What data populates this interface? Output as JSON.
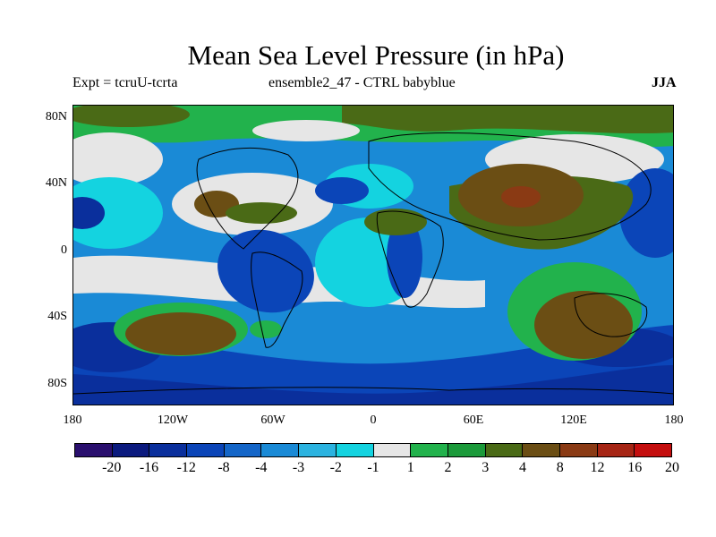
{
  "title": "Mean Sea Level Pressure (in hPa)",
  "subtitle_left": "Expt = tcruU-tcrta",
  "subtitle_center": "ensemble2_47 - CTRL babyblue",
  "subtitle_right": "JJA",
  "lat_labels": [
    "80N",
    "40N",
    "0",
    "40S",
    "80S"
  ],
  "lon_labels": [
    "180",
    "120W",
    "60W",
    "0",
    "60E",
    "120E",
    "180"
  ],
  "colorbar": {
    "labels": [
      "-20",
      "-16",
      "-12",
      "-8",
      "-4",
      "-3",
      "-2",
      "-1",
      "1",
      "2",
      "3",
      "4",
      "8",
      "12",
      "16",
      "20"
    ],
    "colors": [
      "#2a0f6e",
      "#0b1a7e",
      "#0a2f9c",
      "#0b45b8",
      "#1466c8",
      "#1a8ad6",
      "#2bb3e0",
      "#14d3e0",
      "#e6e6e6",
      "#22b24c",
      "#1b9a3a",
      "#4a6a16",
      "#6b4e14",
      "#8a3a14",
      "#a62514",
      "#c40e0e"
    ]
  },
  "map_colors": {
    "ocean_high_neg": "#0b45b8",
    "deep_neg": "#0a2f9c",
    "mid_neg": "#1a8ad6",
    "light_neg": "#14d3e0",
    "neutral": "#e6e6e6",
    "light_pos": "#22b24c",
    "mid_pos": "#4a6a16",
    "strong_pos": "#6b4e14",
    "max_pos": "#8a3a14",
    "coast": "#000000"
  }
}
